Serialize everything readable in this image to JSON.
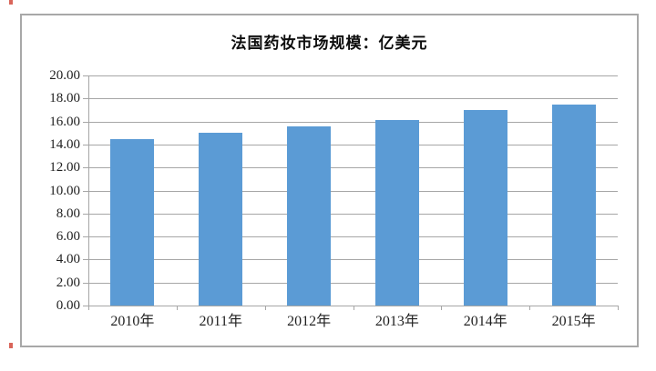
{
  "chart_data": {
    "type": "bar",
    "title": "法国药妆市场规模：亿美元",
    "categories": [
      "2010年",
      "2011年",
      "2012年",
      "2013年",
      "2014年",
      "2015年"
    ],
    "values": [
      14.5,
      15.0,
      15.6,
      16.1,
      17.0,
      17.5
    ],
    "xlabel": "",
    "ylabel": "",
    "ylim": [
      0,
      20
    ],
    "ytick_step": 2,
    "ytick_labels": [
      "0.00",
      "2.00",
      "4.00",
      "6.00",
      "8.00",
      "10.00",
      "12.00",
      "14.00",
      "16.00",
      "18.00",
      "20.00"
    ],
    "grid": "horizontal",
    "legend": "none"
  },
  "style": {
    "bar_color": "#5b9bd5",
    "gridline_color": "#a6a6a6",
    "frame_border_color": "#a8a8a8",
    "text_color": "#1f1f1f",
    "artifact_red": "#d24a3d"
  }
}
